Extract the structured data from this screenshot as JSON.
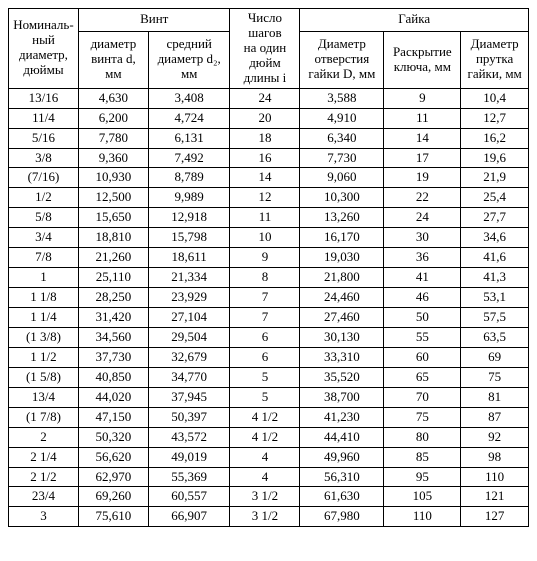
{
  "table": {
    "header_groups": {
      "nominal": "Номиналь-\nный\nдиаметр,\nдюймы",
      "screw": "Винт",
      "steps": "Число\nшагов\nна один\nдюйм\nдлины i",
      "nut": "Гайка"
    },
    "sub_headers": {
      "screw_d": "диаметр\nвинта d,\nмм",
      "screw_d2": "средний\nдиаметр d₂,\nмм",
      "nut_D": "Диаметр\nотверстия\nгайки D, мм",
      "nut_key": "Раскрытие\nключа, мм",
      "nut_rod": "Диаметр\nпрутка\nгайки, мм"
    },
    "rows": [
      [
        "13/16",
        "4,630",
        "3,408",
        "24",
        "3,588",
        "9",
        "10,4"
      ],
      [
        "11/4",
        "6,200",
        "4,724",
        "20",
        "4,910",
        "11",
        "12,7"
      ],
      [
        "5/16",
        "7,780",
        "6,131",
        "18",
        "6,340",
        "14",
        "16,2"
      ],
      [
        "3/8",
        "9,360",
        "7,492",
        "16",
        "7,730",
        "17",
        "19,6"
      ],
      [
        "(7/16)",
        "10,930",
        "8,789",
        "14",
        "9,060",
        "19",
        "21,9"
      ],
      [
        "1/2",
        "12,500",
        "9,989",
        "12",
        "10,300",
        "22",
        "25,4"
      ],
      [
        "5/8",
        "15,650",
        "12,918",
        "11",
        "13,260",
        "24",
        "27,7"
      ],
      [
        "3/4",
        "18,810",
        "15,798",
        "10",
        "16,170",
        "30",
        "34,6"
      ],
      [
        "7/8",
        "21,260",
        "18,611",
        "9",
        "19,030",
        "36",
        "41,6"
      ],
      [
        "1",
        "25,110",
        "21,334",
        "8",
        "21,800",
        "41",
        "41,3"
      ],
      [
        "1 1/8",
        "28,250",
        "23,929",
        "7",
        "24,460",
        "46",
        "53,1"
      ],
      [
        "1 1/4",
        "31,420",
        "27,104",
        "7",
        "27,460",
        "50",
        "57,5"
      ],
      [
        "(1 3/8)",
        "34,560",
        "29,504",
        "6",
        "30,130",
        "55",
        "63,5"
      ],
      [
        "1 1/2",
        "37,730",
        "32,679",
        "6",
        "33,310",
        "60",
        "69"
      ],
      [
        "(1 5/8)",
        "40,850",
        "34,770",
        "5",
        "35,520",
        "65",
        "75"
      ],
      [
        "13/4",
        "44,020",
        "37,945",
        "5",
        "38,700",
        "70",
        "81"
      ],
      [
        "(1 7/8)",
        "47,150",
        "50,397",
        "4 1/2",
        "41,230",
        "75",
        "87"
      ],
      [
        "2",
        "50,320",
        "43,572",
        "4 1/2",
        "44,410",
        "80",
        "92"
      ],
      [
        "2 1/4",
        "56,620",
        "49,019",
        "4",
        "49,960",
        "85",
        "98"
      ],
      [
        "2 1/2",
        "62,970",
        "55,369",
        "4",
        "56,310",
        "95",
        "110"
      ],
      [
        "23/4",
        "69,260",
        "60,557",
        "3 1/2",
        "61,630",
        "105",
        "121"
      ],
      [
        "3",
        "75,610",
        "66,907",
        "3 1/2",
        "67,980",
        "110",
        "127"
      ]
    ]
  }
}
